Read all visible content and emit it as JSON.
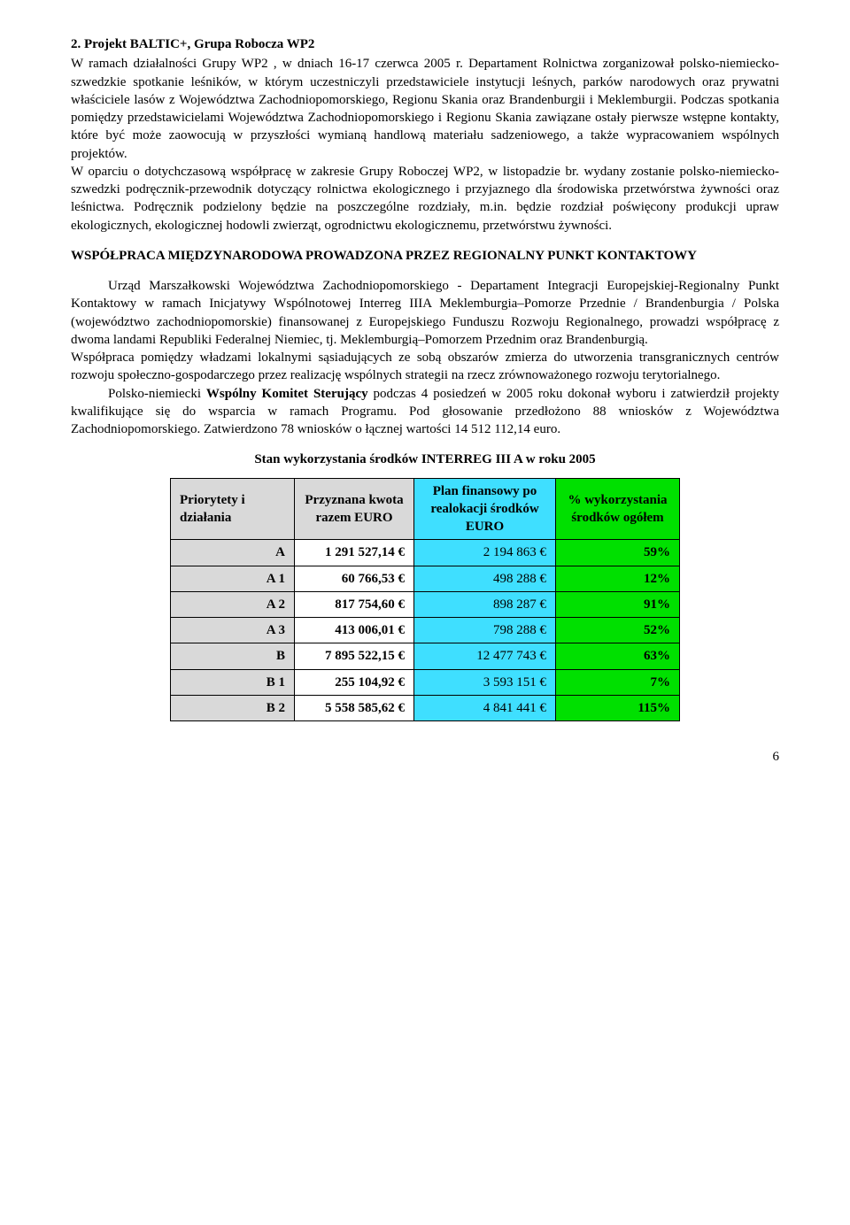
{
  "section1": {
    "title": "2. Projekt BALTIC+, Grupa Robocza WP2",
    "body": "W ramach działalności Grupy WP2 , w dniach 16-17 czerwca 2005 r. Departament Rolnictwa zorganizował polsko-niemiecko-szwedzkie spotkanie leśników, w którym uczestniczyli przedstawiciele instytucji leśnych, parków narodowych oraz prywatni właściciele lasów z Województwa Zachodniopomorskiego, Regionu Skania oraz Brandenburgii i Meklemburgii. Podczas spotkania pomiędzy przedstawicielami Województwa Zachodniopomorskiego i Regionu Skania zawiązane ostały pierwsze wstępne kontakty, które być może zaowocują w przyszłości wymianą handlową materiału sadzeniowego, a także wypracowaniem wspólnych projektów.",
    "body2": "W oparciu o dotychczasową współpracę w zakresie Grupy Roboczej WP2, w listopadzie br. wydany zostanie polsko-niemiecko-szwedzki podręcznik-przewodnik dotyczący rolnictwa ekologicznego i przyjaznego dla środowiska przetwórstwa żywności oraz leśnictwa. Podręcznik podzielony będzie na poszczególne rozdziały, m.in. będzie rozdział poświęcony produkcji upraw ekologicznych, ekologicznej hodowli zwierząt, ogrodnictwu ekologicznemu, przetwórstwu żywności."
  },
  "section2": {
    "heading": "WSPÓŁPRACA MIĘDZYNARODOWA PROWADZONA PRZEZ REGIONALNY PUNKT KONTAKTOWY",
    "p1": "Urząd Marszałkowski Województwa Zachodniopomorskiego - Departament Integracji Europejskiej-Regionalny Punkt Kontaktowy w ramach Inicjatywy Wspólnotowej Interreg IIIA Meklemburgia–Pomorze Przednie / Brandenburgia / Polska (województwo zachodniopomorskie) finansowanej z Europejskiego Funduszu Rozwoju Regionalnego, prowadzi współpracę z dwoma landami Republiki Federalnej Niemiec, tj. Meklemburgią–Pomorzem Przednim oraz Brandenburgią.",
    "p2": "Współpraca pomiędzy władzami lokalnymi sąsiadujących ze sobą obszarów zmierza do utworzenia transgranicznych centrów rozwoju społeczno-gospodarczego przez realizację wspólnych strategii na rzecz zrównoważonego rozwoju terytorialnego.",
    "p3": "Polsko-niemiecki Wspólny Komitet Sterujący podczas 4 posiedzeń w 2005 roku dokonał wyboru i zatwierdził projekty kwalifikujące się do wsparcia w ramach Programu. Pod głosowanie przedłożono 88 wniosków z Województwa Zachodniopomorskiego. Zatwierdzono 78 wniosków o łącznej wartości 14 512 112,14 euro."
  },
  "table": {
    "title": "Stan wykorzystania środków INTERREG III A w roku 2005",
    "headers": {
      "h1": "Priorytety i działania",
      "h2": "Przyznana kwota razem EURO",
      "h3": "Plan finansowy po realokacji środków EURO",
      "h4": "% wykorzystania środków ogółem"
    },
    "rows": [
      {
        "a": "A",
        "e": "1 291 527,14 €",
        "b": "2 194 863 €",
        "g": "59%"
      },
      {
        "a": "A 1",
        "e": "60 766,53 €",
        "b": "498 288 €",
        "g": "12%"
      },
      {
        "a": "A 2",
        "e": "817 754,60 €",
        "b": "898 287 €",
        "g": "91%"
      },
      {
        "a": "A 3",
        "e": "413 006,01 €",
        "b": "798 288 €",
        "g": "52%"
      },
      {
        "a": "B",
        "e": "7 895 522,15 €",
        "b": "12 477 743 €",
        "g": "63%"
      },
      {
        "a": "B 1",
        "e": "255 104,92 €",
        "b": "3 593 151 €",
        "g": "7%"
      },
      {
        "a": "B 2",
        "e": "5 558 585,62 €",
        "b": "4 841 441 €",
        "g": "115%"
      }
    ]
  },
  "page_number": "6",
  "colors": {
    "grey": "#d9d9d9",
    "blue": "#3fdfff",
    "green": "#00e000",
    "text": "#000000",
    "background": "#ffffff"
  }
}
